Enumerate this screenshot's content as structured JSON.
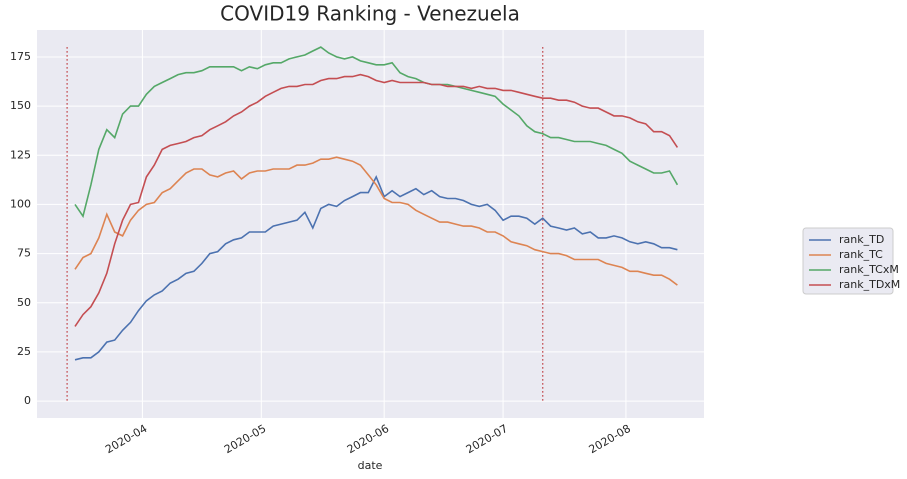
{
  "chart_data": {
    "type": "line",
    "title": "COVID19  Ranking - Venezuela",
    "xlabel": "date",
    "x": [
      75,
      77,
      79,
      81,
      83,
      85,
      87,
      89,
      91,
      93,
      95,
      97,
      99,
      101,
      103,
      105,
      107,
      109,
      111,
      113,
      115,
      117,
      119,
      121,
      123,
      125,
      127,
      129,
      131,
      133,
      135,
      137,
      139,
      141,
      143,
      145,
      147,
      149,
      151,
      153,
      155,
      157,
      159,
      161,
      163,
      165,
      167,
      169,
      171,
      173,
      175,
      177,
      179,
      181,
      183,
      185,
      187,
      189,
      191,
      193,
      195,
      197,
      199,
      201,
      203,
      205,
      207,
      209,
      211,
      213,
      215,
      217,
      219,
      221,
      223,
      225,
      227
    ],
    "series": [
      {
        "name": "rank_TD",
        "color": "#4c72b0",
        "values": [
          21,
          22,
          22,
          25,
          30,
          31,
          36,
          40,
          46,
          51,
          54,
          56,
          60,
          62,
          65,
          66,
          70,
          75,
          76,
          80,
          82,
          83,
          86,
          86,
          86,
          89,
          90,
          91,
          92,
          96,
          88,
          98,
          100,
          99,
          102,
          104,
          106,
          106,
          114,
          104,
          107,
          104,
          106,
          108,
          105,
          107,
          104,
          103,
          103,
          102,
          100,
          99,
          100,
          97,
          92,
          94,
          94,
          93,
          90,
          93,
          89,
          88,
          87,
          88,
          85,
          86,
          83,
          83,
          84,
          83,
          81,
          80,
          81,
          80,
          78,
          78,
          77
        ]
      },
      {
        "name": "rank_TC",
        "color": "#dd8452",
        "values": [
          67,
          73,
          75,
          83,
          95,
          86,
          84,
          92,
          97,
          100,
          101,
          106,
          108,
          112,
          116,
          118,
          118,
          115,
          114,
          116,
          117,
          113,
          116,
          117,
          117,
          118,
          118,
          118,
          120,
          120,
          121,
          123,
          123,
          124,
          123,
          122,
          120,
          115,
          110,
          103,
          101,
          101,
          100,
          97,
          95,
          93,
          91,
          91,
          90,
          89,
          89,
          88,
          86,
          86,
          84,
          81,
          80,
          79,
          77,
          76,
          75,
          75,
          74,
          72,
          72,
          72,
          72,
          70,
          69,
          68,
          66,
          66,
          65,
          64,
          64,
          62,
          59
        ]
      },
      {
        "name": "rank_TCxM",
        "color": "#55a868",
        "values": [
          100,
          94,
          110,
          128,
          138,
          134,
          146,
          150,
          150,
          156,
          160,
          162,
          164,
          166,
          167,
          167,
          168,
          170,
          170,
          170,
          170,
          168,
          170,
          169,
          171,
          172,
          172,
          174,
          175,
          176,
          178,
          180,
          177,
          175,
          174,
          175,
          173,
          172,
          171,
          171,
          172,
          167,
          165,
          164,
          162,
          161,
          161,
          161,
          160,
          159,
          158,
          157,
          156,
          155,
          151,
          148,
          145,
          140,
          137,
          136,
          134,
          134,
          133,
          132,
          132,
          132,
          131,
          130,
          128,
          126,
          122,
          120,
          118,
          116,
          116,
          117,
          110
        ]
      },
      {
        "name": "rank_TDxM",
        "color": "#c44e52",
        "values": [
          38,
          44,
          48,
          55,
          65,
          80,
          92,
          100,
          101,
          114,
          120,
          128,
          130,
          131,
          132,
          134,
          135,
          138,
          140,
          142,
          145,
          147,
          150,
          152,
          155,
          157,
          159,
          160,
          160,
          161,
          161,
          163,
          164,
          164,
          165,
          165,
          166,
          165,
          163,
          162,
          163,
          162,
          162,
          162,
          162,
          161,
          161,
          160,
          160,
          160,
          159,
          160,
          159,
          159,
          158,
          158,
          157,
          156,
          155,
          154,
          154,
          153,
          153,
          152,
          150,
          149,
          149,
          147,
          145,
          145,
          144,
          142,
          141,
          137,
          137,
          135,
          129
        ]
      }
    ],
    "vlines": [
      73,
      193
    ],
    "vline_color": "#c44e52",
    "xlim": [
      65.4,
      233.7
    ],
    "xticks": [
      {
        "value": 92,
        "label": "2020-04"
      },
      {
        "value": 122,
        "label": "2020-05"
      },
      {
        "value": 153,
        "label": "2020-06"
      },
      {
        "value": 183,
        "label": "2020-07"
      },
      {
        "value": 214,
        "label": "2020-08"
      }
    ],
    "ylim": [
      -8.6,
      188.7
    ],
    "yticks": [
      0,
      25,
      50,
      75,
      100,
      125,
      150,
      175
    ],
    "grid": true,
    "legend": "right"
  }
}
